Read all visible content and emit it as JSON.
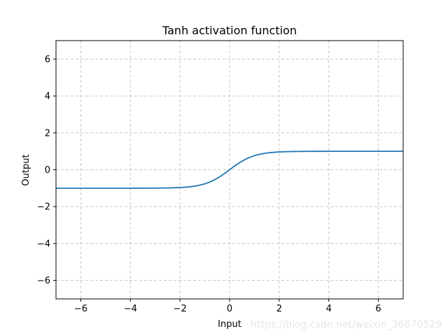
{
  "chart_data": {
    "type": "line",
    "title": "Tanh activation function",
    "xlabel": "Input",
    "ylabel": "Output",
    "xlim": [
      -7,
      7
    ],
    "ylim": [
      -7,
      7
    ],
    "xticks": [
      -6,
      -4,
      -2,
      0,
      2,
      4,
      6
    ],
    "yticks": [
      -6,
      -4,
      -2,
      0,
      2,
      4,
      6
    ],
    "grid": true,
    "grid_style": "dashed",
    "series": [
      {
        "function": "tanh",
        "color": "#1f77b4",
        "x": [
          -7,
          -6,
          -5,
          -4,
          -3,
          -2.5,
          -2,
          -1.5,
          -1.25,
          -1,
          -0.75,
          -0.5,
          -0.25,
          0,
          0.25,
          0.5,
          0.75,
          1,
          1.25,
          1.5,
          2,
          2.5,
          3,
          4,
          5,
          6,
          7
        ],
        "y": [
          -1.0,
          -1.0,
          -0.9999,
          -0.9993,
          -0.9951,
          -0.9866,
          -0.964,
          -0.9051,
          -0.8483,
          -0.7616,
          -0.6351,
          -0.4621,
          -0.2449,
          0.0,
          0.2449,
          0.4621,
          0.6351,
          0.7616,
          0.8483,
          0.9051,
          0.964,
          0.9866,
          0.9951,
          0.9993,
          0.9999,
          1.0,
          1.0
        ]
      }
    ]
  },
  "watermark": "https://blog.csdn.net/weixin_36670529"
}
